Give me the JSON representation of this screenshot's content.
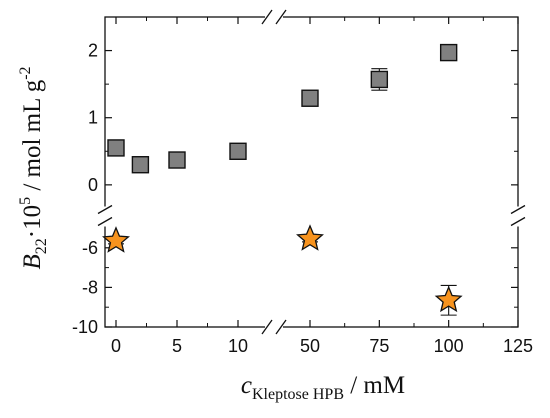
{
  "chart_data": {
    "type": "scatter",
    "title": "",
    "xlabel": {
      "main": "c",
      "sub": "Kleptose HPB",
      "rest": " / mM"
    },
    "ylabel": {
      "main": "B",
      "sub": "22",
      "mid": "·10",
      "sup": "5",
      "rest": " / mol mL g",
      "sup2": "-2"
    },
    "x_axis": {
      "segments": [
        {
          "range": [
            0,
            10
          ],
          "ticks": [
            0,
            5,
            10
          ]
        },
        {
          "range": [
            50,
            125
          ],
          "ticks": [
            50,
            75,
            100,
            125
          ]
        }
      ],
      "tick_labels": [
        "0",
        "5",
        "10",
        "50",
        "75",
        "100",
        "125"
      ]
    },
    "y_axis": {
      "segments": [
        {
          "range": [
            -10,
            -5
          ],
          "ticks": [
            -10,
            -8,
            -6
          ]
        },
        {
          "range": [
            -0.3,
            2.5
          ],
          "ticks": [
            0,
            1,
            2
          ]
        }
      ],
      "tick_labels": [
        "-10",
        "-8",
        "-6",
        "0",
        "1",
        "2"
      ]
    },
    "grid": false,
    "series": [
      {
        "marker": "square",
        "color": "#808080",
        "x": [
          0,
          2,
          5,
          10,
          50,
          75,
          100
        ],
        "y": [
          0.55,
          0.3,
          0.37,
          0.5,
          1.29,
          1.57,
          1.97
        ],
        "err": [
          0.05,
          0.06,
          0.06,
          0.06,
          0.06,
          0.16,
          0.05
        ]
      },
      {
        "marker": "star",
        "color": "#F7931E",
        "x": [
          0,
          50,
          100
        ],
        "y": [
          -5.65,
          -5.55,
          -8.65
        ],
        "err": [
          0.15,
          0.15,
          0.75
        ]
      }
    ]
  }
}
